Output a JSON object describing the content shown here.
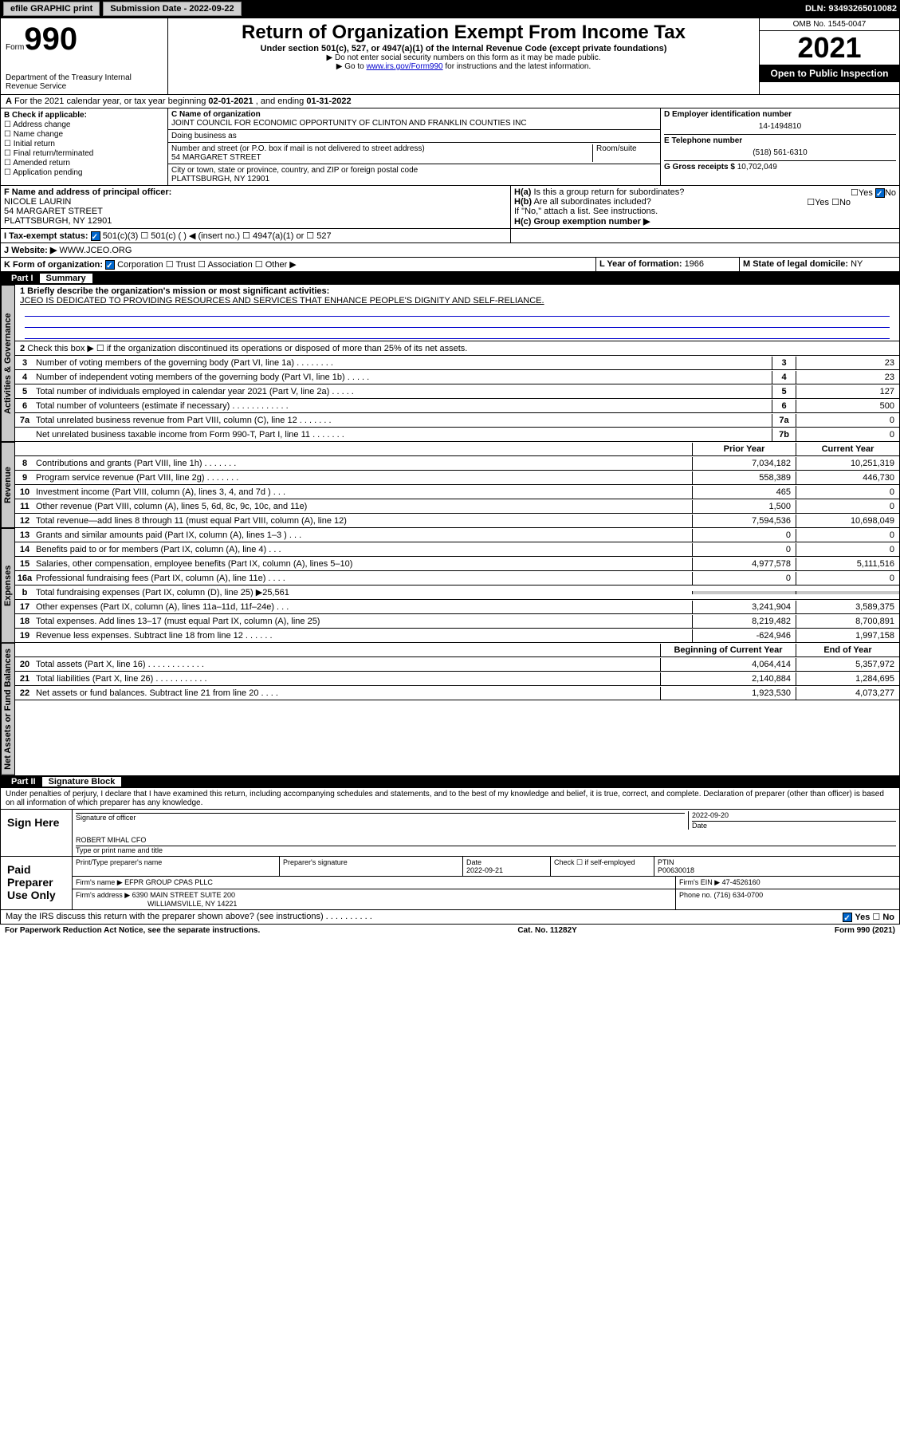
{
  "topbar": {
    "efile": "efile GRAPHIC print",
    "subdate_label": "Submission Date - ",
    "subdate": "2022-09-22",
    "dln_label": "DLN: ",
    "dln": "93493265010082"
  },
  "header": {
    "form_label": "Form",
    "form_num": "990",
    "dept": "Department of the Treasury\nInternal Revenue Service",
    "title": "Return of Organization Exempt From Income Tax",
    "subtitle": "Under section 501(c), 527, or 4947(a)(1) of the Internal Revenue Code (except private foundations)",
    "note1": "▶ Do not enter social security numbers on this form as it may be made public.",
    "note2_pre": "▶ Go to ",
    "note2_link": "www.irs.gov/Form990",
    "note2_post": " for instructions and the latest information.",
    "omb": "OMB No. 1545-0047",
    "year": "2021",
    "inspect": "Open to Public Inspection"
  },
  "lineA": {
    "text_pre": "For the 2021 calendar year, or tax year beginning ",
    "begin": "02-01-2021",
    "mid": " , and ending ",
    "end": "01-31-2022"
  },
  "boxB": {
    "label": "B Check if applicable:",
    "items": [
      "☐ Address change",
      "☐ Name change",
      "☐ Initial return",
      "☐ Final return/terminated",
      "☐ Amended return",
      "☐ Application pending"
    ]
  },
  "boxC": {
    "name_label": "C Name of organization",
    "name": "JOINT COUNCIL FOR ECONOMIC OPPORTUNITY OF CLINTON AND FRANKLIN COUNTIES INC",
    "dba_label": "Doing business as",
    "street_label": "Number and street (or P.O. box if mail is not delivered to street address)",
    "street": "54 MARGARET STREET",
    "room_label": "Room/suite",
    "city_label": "City or town, state or province, country, and ZIP or foreign postal code",
    "city": "PLATTSBURGH, NY  12901"
  },
  "boxDE": {
    "d_label": "D Employer identification number",
    "ein": "14-1494810",
    "e_label": "E Telephone number",
    "phone": "(518) 561-6310",
    "g_label": "G Gross receipts $ ",
    "gross": "10,702,049"
  },
  "boxF": {
    "label": "F Name and address of principal officer:",
    "name": "NICOLE LAURIN",
    "street": "54 MARGARET STREET",
    "city": "PLATTSBURGH, NY  12901"
  },
  "boxH": {
    "ha_label": "H(a)  Is this a group return for subordinates?",
    "ha_yes": "Yes",
    "ha_no": "No",
    "hb_label": "H(b)  Are all subordinates included?",
    "hb_yes": "Yes",
    "hb_no": "No",
    "hb_note": "If \"No,\" attach a list. See instructions.",
    "hc_label": "H(c)  Group exemption number ▶"
  },
  "boxI": {
    "label": "I    Tax-exempt status:",
    "opt1": "501(c)(3)",
    "opt2": "501(c) (  ) ◀ (insert no.)",
    "opt3": "4947(a)(1) or",
    "opt4": "527"
  },
  "boxJ": {
    "label": "J    Website: ▶ ",
    "value": "WWW.JCEO.ORG"
  },
  "boxK": {
    "label": "K Form of organization:",
    "opts": [
      "Corporation",
      "Trust",
      "Association",
      "Other ▶"
    ]
  },
  "boxL": {
    "label": "L Year of formation: ",
    "value": "1966"
  },
  "boxM": {
    "label": "M State of legal domicile: ",
    "value": "NY"
  },
  "part1": {
    "hdr_num": "Part I",
    "hdr_title": "Summary",
    "q1_label": "1  Briefly describe the organization's mission or most significant activities:",
    "q1_text": "JCEO IS DEDICATED TO PROVIDING RESOURCES AND SERVICES THAT ENHANCE PEOPLE'S DIGNITY AND SELF-RELIANCE.",
    "q2": "Check this box ▶ ☐  if the organization discontinued its operations or disposed of more than 25% of its net assets.",
    "sections": {
      "gov": "Activities & Governance",
      "rev": "Revenue",
      "exp": "Expenses",
      "net": "Net Assets or Fund Balances"
    },
    "rows_single": [
      {
        "n": "3",
        "t": "Number of voting members of the governing body (Part VI, line 1a)  .  .  .  .  .  .  .  .",
        "b": "3",
        "v": "23"
      },
      {
        "n": "4",
        "t": "Number of independent voting members of the governing body (Part VI, line 1b)  .  .  .  .  .",
        "b": "4",
        "v": "23"
      },
      {
        "n": "5",
        "t": "Total number of individuals employed in calendar year 2021 (Part V, line 2a)  .  .  .  .  .",
        "b": "5",
        "v": "127"
      },
      {
        "n": "6",
        "t": "Total number of volunteers (estimate if necessary)  .  .  .  .  .  .  .  .  .  .  .  .",
        "b": "6",
        "v": "500"
      },
      {
        "n": "7a",
        "t": "Total unrelated business revenue from Part VIII, column (C), line 12  .  .  .  .  .  .  .",
        "b": "7a",
        "v": "0"
      },
      {
        "n": "",
        "t": "Net unrelated business taxable income from Form 990-T, Part I, line 11  .  .  .  .  .  .  .",
        "b": "7b",
        "v": "0"
      }
    ],
    "col_hdrs": {
      "prior": "Prior Year",
      "current": "Current Year"
    },
    "rows_rev": [
      {
        "n": "8",
        "t": "Contributions and grants (Part VIII, line 1h)  .  .  .  .  .  .  .",
        "p": "7,034,182",
        "c": "10,251,319"
      },
      {
        "n": "9",
        "t": "Program service revenue (Part VIII, line 2g)  .  .  .  .  .  .  .",
        "p": "558,389",
        "c": "446,730"
      },
      {
        "n": "10",
        "t": "Investment income (Part VIII, column (A), lines 3, 4, and 7d )  .  .  .",
        "p": "465",
        "c": "0"
      },
      {
        "n": "11",
        "t": "Other revenue (Part VIII, column (A), lines 5, 6d, 8c, 9c, 10c, and 11e)",
        "p": "1,500",
        "c": "0"
      },
      {
        "n": "12",
        "t": "Total revenue—add lines 8 through 11 (must equal Part VIII, column (A), line 12)",
        "p": "7,594,536",
        "c": "10,698,049"
      }
    ],
    "rows_exp": [
      {
        "n": "13",
        "t": "Grants and similar amounts paid (Part IX, column (A), lines 1–3 )  .  .  .",
        "p": "0",
        "c": "0"
      },
      {
        "n": "14",
        "t": "Benefits paid to or for members (Part IX, column (A), line 4)  .  .  .",
        "p": "0",
        "c": "0"
      },
      {
        "n": "15",
        "t": "Salaries, other compensation, employee benefits (Part IX, column (A), lines 5–10)",
        "p": "4,977,578",
        "c": "5,111,516"
      },
      {
        "n": "16a",
        "t": "Professional fundraising fees (Part IX, column (A), line 11e)  .  .  .  .",
        "p": "0",
        "c": "0"
      },
      {
        "n": "b",
        "t": "Total fundraising expenses (Part IX, column (D), line 25) ▶25,561",
        "p": "",
        "c": "",
        "grey": true
      },
      {
        "n": "17",
        "t": "Other expenses (Part IX, column (A), lines 11a–11d, 11f–24e)  .  .  .",
        "p": "3,241,904",
        "c": "3,589,375"
      },
      {
        "n": "18",
        "t": "Total expenses. Add lines 13–17 (must equal Part IX, column (A), line 25)",
        "p": "8,219,482",
        "c": "8,700,891"
      },
      {
        "n": "19",
        "t": "Revenue less expenses. Subtract line 18 from line 12  .  .  .  .  .  .",
        "p": "-624,946",
        "c": "1,997,158"
      }
    ],
    "col_hdrs2": {
      "beg": "Beginning of Current Year",
      "end": "End of Year"
    },
    "rows_net": [
      {
        "n": "20",
        "t": "Total assets (Part X, line 16)  .  .  .  .  .  .  .  .  .  .  .  .",
        "p": "4,064,414",
        "c": "5,357,972"
      },
      {
        "n": "21",
        "t": "Total liabilities (Part X, line 26)  .  .  .  .  .  .  .  .  .  .  .",
        "p": "2,140,884",
        "c": "1,284,695"
      },
      {
        "n": "22",
        "t": "Net assets or fund balances. Subtract line 21 from line 20  .  .  .  .",
        "p": "1,923,530",
        "c": "4,073,277"
      }
    ]
  },
  "part2": {
    "hdr_num": "Part II",
    "hdr_title": "Signature Block",
    "penalty": "Under penalties of perjury, I declare that I have examined this return, including accompanying schedules and statements, and to the best of my knowledge and belief, it is true, correct, and complete. Declaration of preparer (other than officer) is based on all information of which preparer has any knowledge.",
    "sign_here": "Sign Here",
    "sig_officer": "Signature of officer",
    "sig_date": "2022-09-20",
    "date_label": "Date",
    "officer_name": "ROBERT MIHAL CFO",
    "type_name": "Type or print name and title",
    "paid": "Paid Preparer Use Only",
    "prep_name_label": "Print/Type preparer's name",
    "prep_sig_label": "Preparer's signature",
    "prep_date_label": "Date",
    "prep_date": "2022-09-21",
    "check_self": "Check ☐ if self-employed",
    "ptin_label": "PTIN",
    "ptin": "P00630018",
    "firm_name_label": "Firm's name    ▶ ",
    "firm_name": "EFPR GROUP CPAS PLLC",
    "firm_ein_label": "Firm's EIN ▶ ",
    "firm_ein": "47-4526160",
    "firm_addr_label": "Firm's address ▶ ",
    "firm_addr1": "6390 MAIN STREET SUITE 200",
    "firm_addr2": "WILLIAMSVILLE, NY  14221",
    "firm_phone_label": "Phone no. ",
    "firm_phone": "(716) 634-0700",
    "irs_discuss": "May the IRS discuss this return with the preparer shown above? (see instructions)  .  .  .  .  .  .  .  .  .  .",
    "irs_yes": "Yes",
    "irs_no": "No"
  },
  "footer": {
    "left": "For Paperwork Reduction Act Notice, see the separate instructions.",
    "mid": "Cat. No. 11282Y",
    "right": "Form 990 (2021)"
  }
}
